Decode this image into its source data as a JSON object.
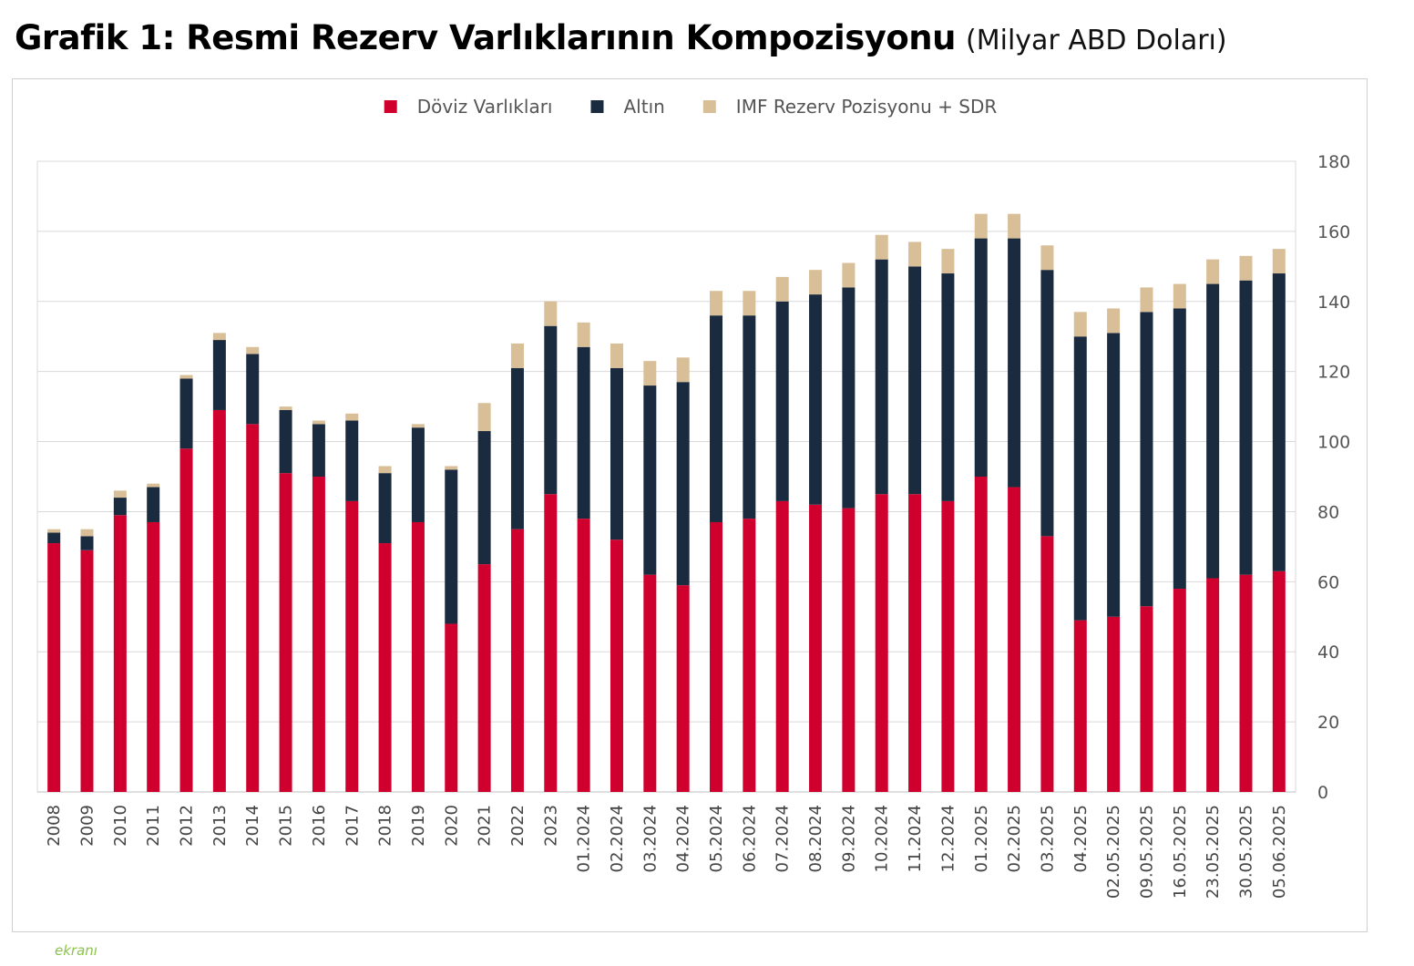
{
  "title": "Grafik 1: Resmi Rezerv Varlıklarının Kompozisyonu",
  "subtitle": "(Milyar ABD Doları)",
  "watermark": "ekranı",
  "colors": {
    "doviz": "#d0002e",
    "altin": "#1b2b3f",
    "imf": "#d8bf98",
    "grid": "#d9d9d9",
    "axis": "#bfbfbf"
  },
  "chart_data": {
    "type": "bar",
    "stacked": true,
    "categories": [
      "2008",
      "2009",
      "2010",
      "2011",
      "2012",
      "2013",
      "2014",
      "2015",
      "2016",
      "2017",
      "2018",
      "2019",
      "2020",
      "2021",
      "2022",
      "2023",
      "01.2024",
      "02.2024",
      "03.2024",
      "04.2024",
      "05.2024",
      "06.2024",
      "07.2024",
      "08.2024",
      "09.2024",
      "10.2024",
      "11.2024",
      "12.2024",
      "01.2025",
      "02.2025",
      "03.2025",
      "04.2025",
      "02.05.2025",
      "09.05.2025",
      "16.05.2025",
      "23.05.2025",
      "30.05.2025",
      "05.06.2025"
    ],
    "series": [
      {
        "name": "Döviz Varlıkları",
        "color_key": "doviz",
        "values": [
          71,
          69,
          79,
          77,
          98,
          109,
          105,
          91,
          90,
          83,
          71,
          77,
          48,
          65,
          75,
          85,
          78,
          72,
          62,
          59,
          77,
          78,
          83,
          82,
          81,
          85,
          85,
          83,
          90,
          87,
          73,
          49,
          50,
          53,
          58,
          61,
          62,
          63
        ]
      },
      {
        "name": "Altın",
        "color_key": "altin",
        "values": [
          3,
          4,
          5,
          10,
          20,
          20,
          20,
          18,
          15,
          23,
          20,
          27,
          44,
          38,
          46,
          48,
          49,
          49,
          54,
          58,
          59,
          58,
          57,
          60,
          63,
          67,
          65,
          65,
          68,
          71,
          76,
          81,
          81,
          84,
          80,
          84,
          84,
          85
        ]
      },
      {
        "name": "IMF Rezerv Pozisyonu + SDR",
        "color_key": "imf",
        "values": [
          1,
          2,
          2,
          1,
          1,
          2,
          2,
          1,
          1,
          2,
          2,
          1,
          1,
          8,
          7,
          7,
          7,
          7,
          7,
          7,
          7,
          7,
          7,
          7,
          7,
          7,
          7,
          7,
          7,
          7,
          7,
          7,
          7,
          7,
          7,
          7,
          7,
          7
        ]
      }
    ],
    "y_ticks": [
      "0",
      "20",
      "40",
      "60",
      "80",
      "100",
      "120",
      "140",
      "160",
      "180"
    ],
    "ylim": [
      0,
      180
    ],
    "y_axis_side": "right",
    "grid": true,
    "legend_position": "top-center"
  }
}
